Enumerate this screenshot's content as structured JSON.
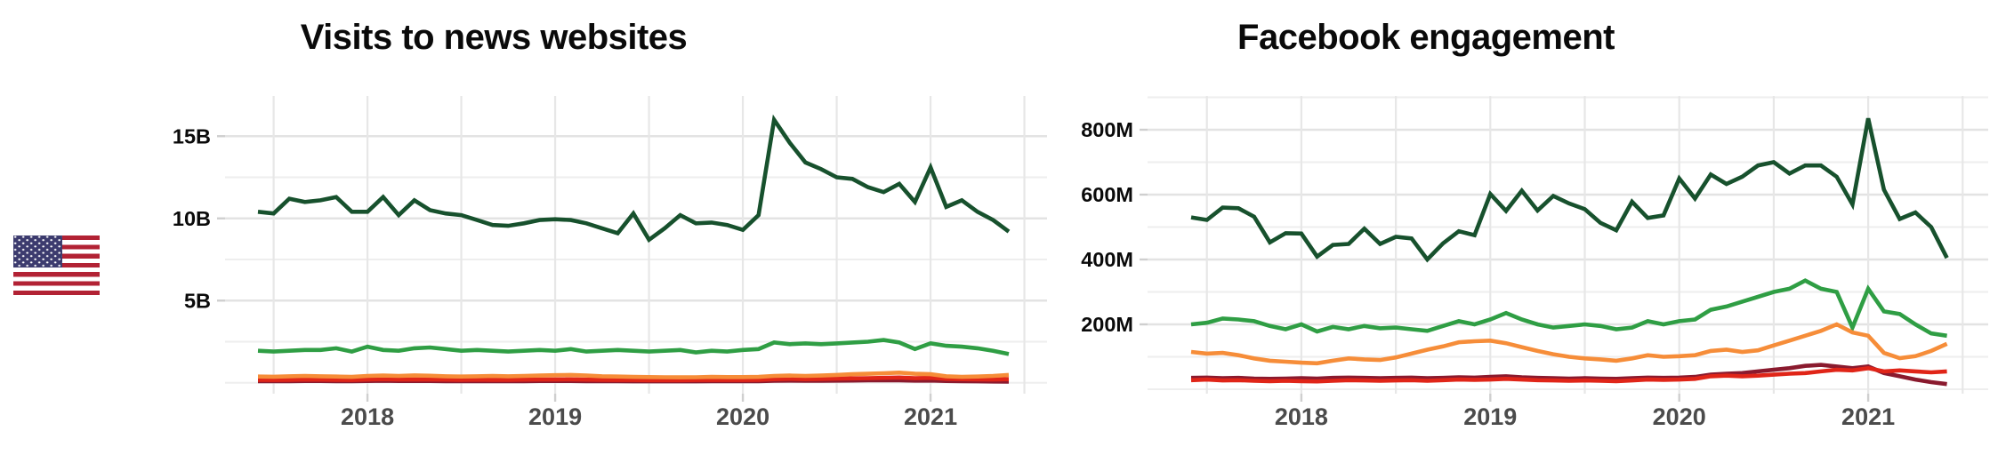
{
  "page": {
    "background": "#ffffff"
  },
  "flag": {
    "country": "united-states",
    "stripe_red": "#B22234",
    "canton_blue": "#3C3B6E",
    "white": "#ffffff"
  },
  "chart_data": [
    {
      "type": "line",
      "title": "Visits to news websites",
      "x": {
        "start_month": "2017-06",
        "end_month": "2021-06",
        "frequency": "monthly",
        "tick_labels": [
          "2018",
          "2019",
          "2020",
          "2021"
        ],
        "gridlines_every_months": 6
      },
      "y": {
        "tick_labels": [
          "5B",
          "10B",
          "15B"
        ],
        "tick_values": [
          5,
          10,
          15
        ],
        "minor_gridline_step": 2.5,
        "ylim": [
          0,
          17.5
        ],
        "unit": "billions of visits"
      },
      "grid": true,
      "legend": "none",
      "series": [
        {
          "name": "dark-green-line",
          "color": "#17512D",
          "values": [
            10.4,
            10.3,
            11.2,
            11.0,
            11.1,
            11.3,
            10.4,
            10.4,
            11.3,
            10.2,
            11.1,
            10.5,
            10.3,
            10.2,
            9.9,
            9.6,
            9.55,
            9.7,
            9.9,
            9.95,
            9.9,
            9.7,
            9.4,
            9.1,
            10.3,
            8.7,
            9.4,
            10.2,
            9.7,
            9.75,
            9.6,
            9.3,
            10.2,
            16.0,
            14.6,
            13.4,
            13.0,
            12.5,
            12.4,
            11.9,
            11.6,
            12.1,
            11.0,
            13.1,
            10.7,
            11.1,
            10.4,
            9.9,
            9.2
          ]
        },
        {
          "name": "green-line",
          "color": "#2F9E44",
          "values": [
            1.95,
            1.9,
            1.95,
            2.0,
            2.0,
            2.1,
            1.9,
            2.2,
            2.0,
            1.95,
            2.1,
            2.15,
            2.05,
            1.95,
            2.0,
            1.95,
            1.9,
            1.95,
            2.0,
            1.95,
            2.05,
            1.9,
            1.95,
            2.0,
            1.95,
            1.9,
            1.95,
            2.0,
            1.85,
            1.95,
            1.9,
            2.0,
            2.05,
            2.45,
            2.35,
            2.4,
            2.35,
            2.4,
            2.45,
            2.5,
            2.6,
            2.45,
            2.05,
            2.4,
            2.25,
            2.2,
            2.1,
            1.95,
            1.75
          ]
        },
        {
          "name": "dark-red-line",
          "color": "#8A1A2E",
          "values": [
            0.1,
            0.1,
            0.1,
            0.11,
            0.11,
            0.1,
            0.1,
            0.11,
            0.12,
            0.11,
            0.11,
            0.11,
            0.1,
            0.1,
            0.1,
            0.1,
            0.1,
            0.1,
            0.11,
            0.11,
            0.11,
            0.1,
            0.1,
            0.1,
            0.09,
            0.09,
            0.09,
            0.09,
            0.09,
            0.1,
            0.1,
            0.1,
            0.1,
            0.12,
            0.13,
            0.12,
            0.12,
            0.13,
            0.14,
            0.15,
            0.16,
            0.15,
            0.13,
            0.14,
            0.11,
            0.1,
            0.09,
            0.08,
            0.07
          ]
        },
        {
          "name": "red-line",
          "color": "#E02518",
          "values": [
            0.18,
            0.17,
            0.18,
            0.2,
            0.19,
            0.18,
            0.17,
            0.2,
            0.22,
            0.2,
            0.21,
            0.2,
            0.19,
            0.18,
            0.19,
            0.18,
            0.18,
            0.19,
            0.2,
            0.2,
            0.21,
            0.19,
            0.18,
            0.17,
            0.17,
            0.16,
            0.16,
            0.16,
            0.17,
            0.18,
            0.17,
            0.17,
            0.18,
            0.22,
            0.24,
            0.22,
            0.23,
            0.25,
            0.27,
            0.28,
            0.3,
            0.32,
            0.28,
            0.3,
            0.24,
            0.22,
            0.21,
            0.2,
            0.22
          ]
        },
        {
          "name": "orange-line",
          "color": "#F68D39",
          "values": [
            0.38,
            0.37,
            0.4,
            0.42,
            0.4,
            0.38,
            0.36,
            0.42,
            0.44,
            0.42,
            0.45,
            0.43,
            0.4,
            0.38,
            0.4,
            0.42,
            0.4,
            0.42,
            0.44,
            0.46,
            0.48,
            0.44,
            0.4,
            0.38,
            0.36,
            0.35,
            0.34,
            0.33,
            0.34,
            0.36,
            0.35,
            0.35,
            0.36,
            0.42,
            0.44,
            0.42,
            0.44,
            0.48,
            0.52,
            0.55,
            0.58,
            0.62,
            0.55,
            0.52,
            0.4,
            0.36,
            0.38,
            0.42,
            0.48
          ]
        }
      ]
    },
    {
      "type": "line",
      "title": "Facebook engagement",
      "x": {
        "start_month": "2017-06",
        "end_month": "2021-06",
        "frequency": "monthly",
        "tick_labels": [
          "2018",
          "2019",
          "2020",
          "2021"
        ],
        "gridlines_every_months": 6
      },
      "y": {
        "tick_labels": [
          "200M",
          "400M",
          "600M",
          "800M"
        ],
        "tick_values": [
          200,
          400,
          600,
          800
        ],
        "minor_gridline_step": 100,
        "ylim": [
          0,
          900
        ],
        "unit": "millions of engagements"
      },
      "grid": true,
      "legend": "none",
      "series": [
        {
          "name": "dark-green-line",
          "color": "#17512D",
          "values": [
            530,
            522,
            560,
            558,
            532,
            453,
            481,
            480,
            409,
            445,
            448,
            495,
            448,
            470,
            465,
            400,
            450,
            487,
            475,
            602,
            550,
            612,
            551,
            596,
            573,
            555,
            513,
            490,
            578,
            528,
            536,
            650,
            588,
            662,
            633,
            655,
            690,
            700,
            665,
            690,
            690,
            655,
            570,
            835,
            615,
            525,
            545,
            500,
            405
          ]
        },
        {
          "name": "green-line",
          "color": "#2F9E44",
          "values": [
            200,
            205,
            218,
            215,
            210,
            195,
            185,
            200,
            178,
            192,
            185,
            195,
            188,
            190,
            185,
            180,
            195,
            210,
            200,
            215,
            235,
            215,
            200,
            190,
            195,
            200,
            195,
            185,
            190,
            210,
            200,
            210,
            215,
            245,
            255,
            270,
            285,
            300,
            310,
            335,
            310,
            300,
            190,
            310,
            240,
            232,
            200,
            172,
            165
          ]
        },
        {
          "name": "dark-red-line",
          "color": "#8A1A2E",
          "values": [
            35,
            36,
            34,
            35,
            33,
            32,
            33,
            34,
            33,
            35,
            36,
            35,
            34,
            35,
            36,
            34,
            35,
            37,
            36,
            38,
            40,
            37,
            35,
            34,
            33,
            34,
            33,
            32,
            34,
            36,
            35,
            36,
            38,
            45,
            48,
            50,
            55,
            60,
            65,
            72,
            75,
            70,
            65,
            70,
            50,
            40,
            30,
            22,
            16
          ]
        },
        {
          "name": "red-line",
          "color": "#E02518",
          "values": [
            28,
            30,
            27,
            28,
            26,
            25,
            26,
            25,
            24,
            26,
            28,
            27,
            26,
            27,
            28,
            26,
            28,
            30,
            29,
            30,
            32,
            30,
            28,
            27,
            26,
            27,
            26,
            25,
            27,
            30,
            29,
            30,
            32,
            40,
            42,
            40,
            42,
            45,
            48,
            50,
            55,
            60,
            58,
            65,
            55,
            58,
            55,
            52,
            55
          ]
        },
        {
          "name": "orange-line",
          "color": "#F68D39",
          "values": [
            115,
            110,
            112,
            105,
            95,
            88,
            85,
            82,
            80,
            88,
            95,
            92,
            90,
            98,
            110,
            122,
            132,
            145,
            148,
            150,
            142,
            130,
            118,
            108,
            100,
            95,
            92,
            88,
            95,
            105,
            100,
            102,
            105,
            118,
            122,
            115,
            120,
            135,
            150,
            165,
            180,
            200,
            175,
            165,
            112,
            96,
            102,
            118,
            140
          ]
        }
      ]
    }
  ]
}
